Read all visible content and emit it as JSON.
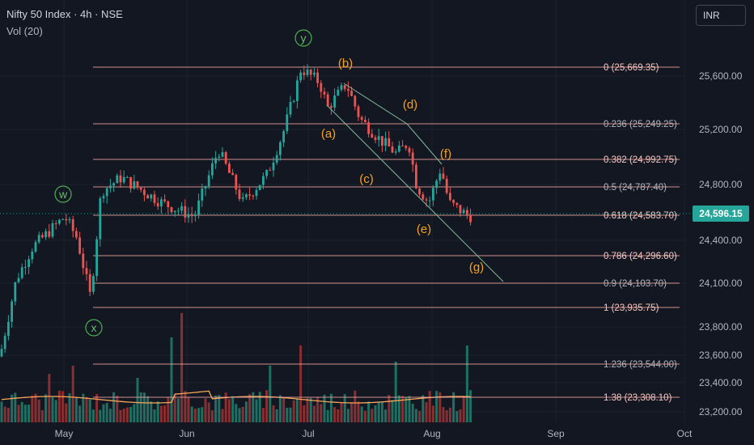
{
  "header": {
    "title": "Nifty 50 Index · 4h · NSE",
    "volume_indicator": "Vol (20)",
    "currency_button": "INR"
  },
  "colors": {
    "background": "#131722",
    "up": "#26a69a",
    "down": "#ef5350",
    "fib_line": "#f2a8a0",
    "wave_orange": "#f7a21b",
    "wave_green": "#4caf50",
    "price_tag": "#26a69a",
    "vol_ma": "#f5a55a"
  },
  "chart_data": {
    "type": "candlestick",
    "x_axis": {
      "ticks": [
        "May",
        "Jun",
        "Jul",
        "Aug",
        "Sep",
        "Oct"
      ]
    },
    "y_axis": {
      "ticks": [
        "25,600.00",
        "25,200.00",
        "24,800.00",
        "24,400.00",
        "24,100.00",
        "23,800.00",
        "23,600.00",
        "23,400.00",
        "23,200.00"
      ]
    },
    "last_price": "24,596.15",
    "fib_levels": [
      {
        "ratio": "0",
        "price": 25669.35,
        "label": "0 (25,669.35)"
      },
      {
        "ratio": "0.236",
        "price": 25249.25,
        "label": "0.236 (25,249.25)"
      },
      {
        "ratio": "0.382",
        "price": 24992.75,
        "label": "0.382 (24,992.75)"
      },
      {
        "ratio": "0.5",
        "price": 24787.4,
        "label": "0.5 (24,787.40)"
      },
      {
        "ratio": "0.618",
        "price": 24583.7,
        "label": "0.618 (24,583.70)"
      },
      {
        "ratio": "0.786",
        "price": 24296.6,
        "label": "0.786 (24,296.60)"
      },
      {
        "ratio": "0.9",
        "price": 24103.7,
        "label": "0.9 (24,103.70)"
      },
      {
        "ratio": "1",
        "price": 23935.75,
        "label": "1 (23,935.75)"
      },
      {
        "ratio": "1.236",
        "price": 23544.0,
        "label": "1.236 (23,544.00)"
      },
      {
        "ratio": "1.38",
        "price": 23308.1,
        "label": "1.38 (23,308.10)"
      }
    ],
    "wave_labels": [
      {
        "text": "w",
        "style": "circled"
      },
      {
        "text": "x",
        "style": "circled"
      },
      {
        "text": "y",
        "style": "circled"
      },
      {
        "text": "(a)",
        "style": "plain"
      },
      {
        "text": "(b)",
        "style": "plain"
      },
      {
        "text": "(c)",
        "style": "plain"
      },
      {
        "text": "(d)",
        "style": "plain"
      },
      {
        "text": "(e)",
        "style": "plain"
      },
      {
        "text": "(f)",
        "style": "plain"
      },
      {
        "text": "(g)",
        "style": "plain"
      }
    ]
  }
}
